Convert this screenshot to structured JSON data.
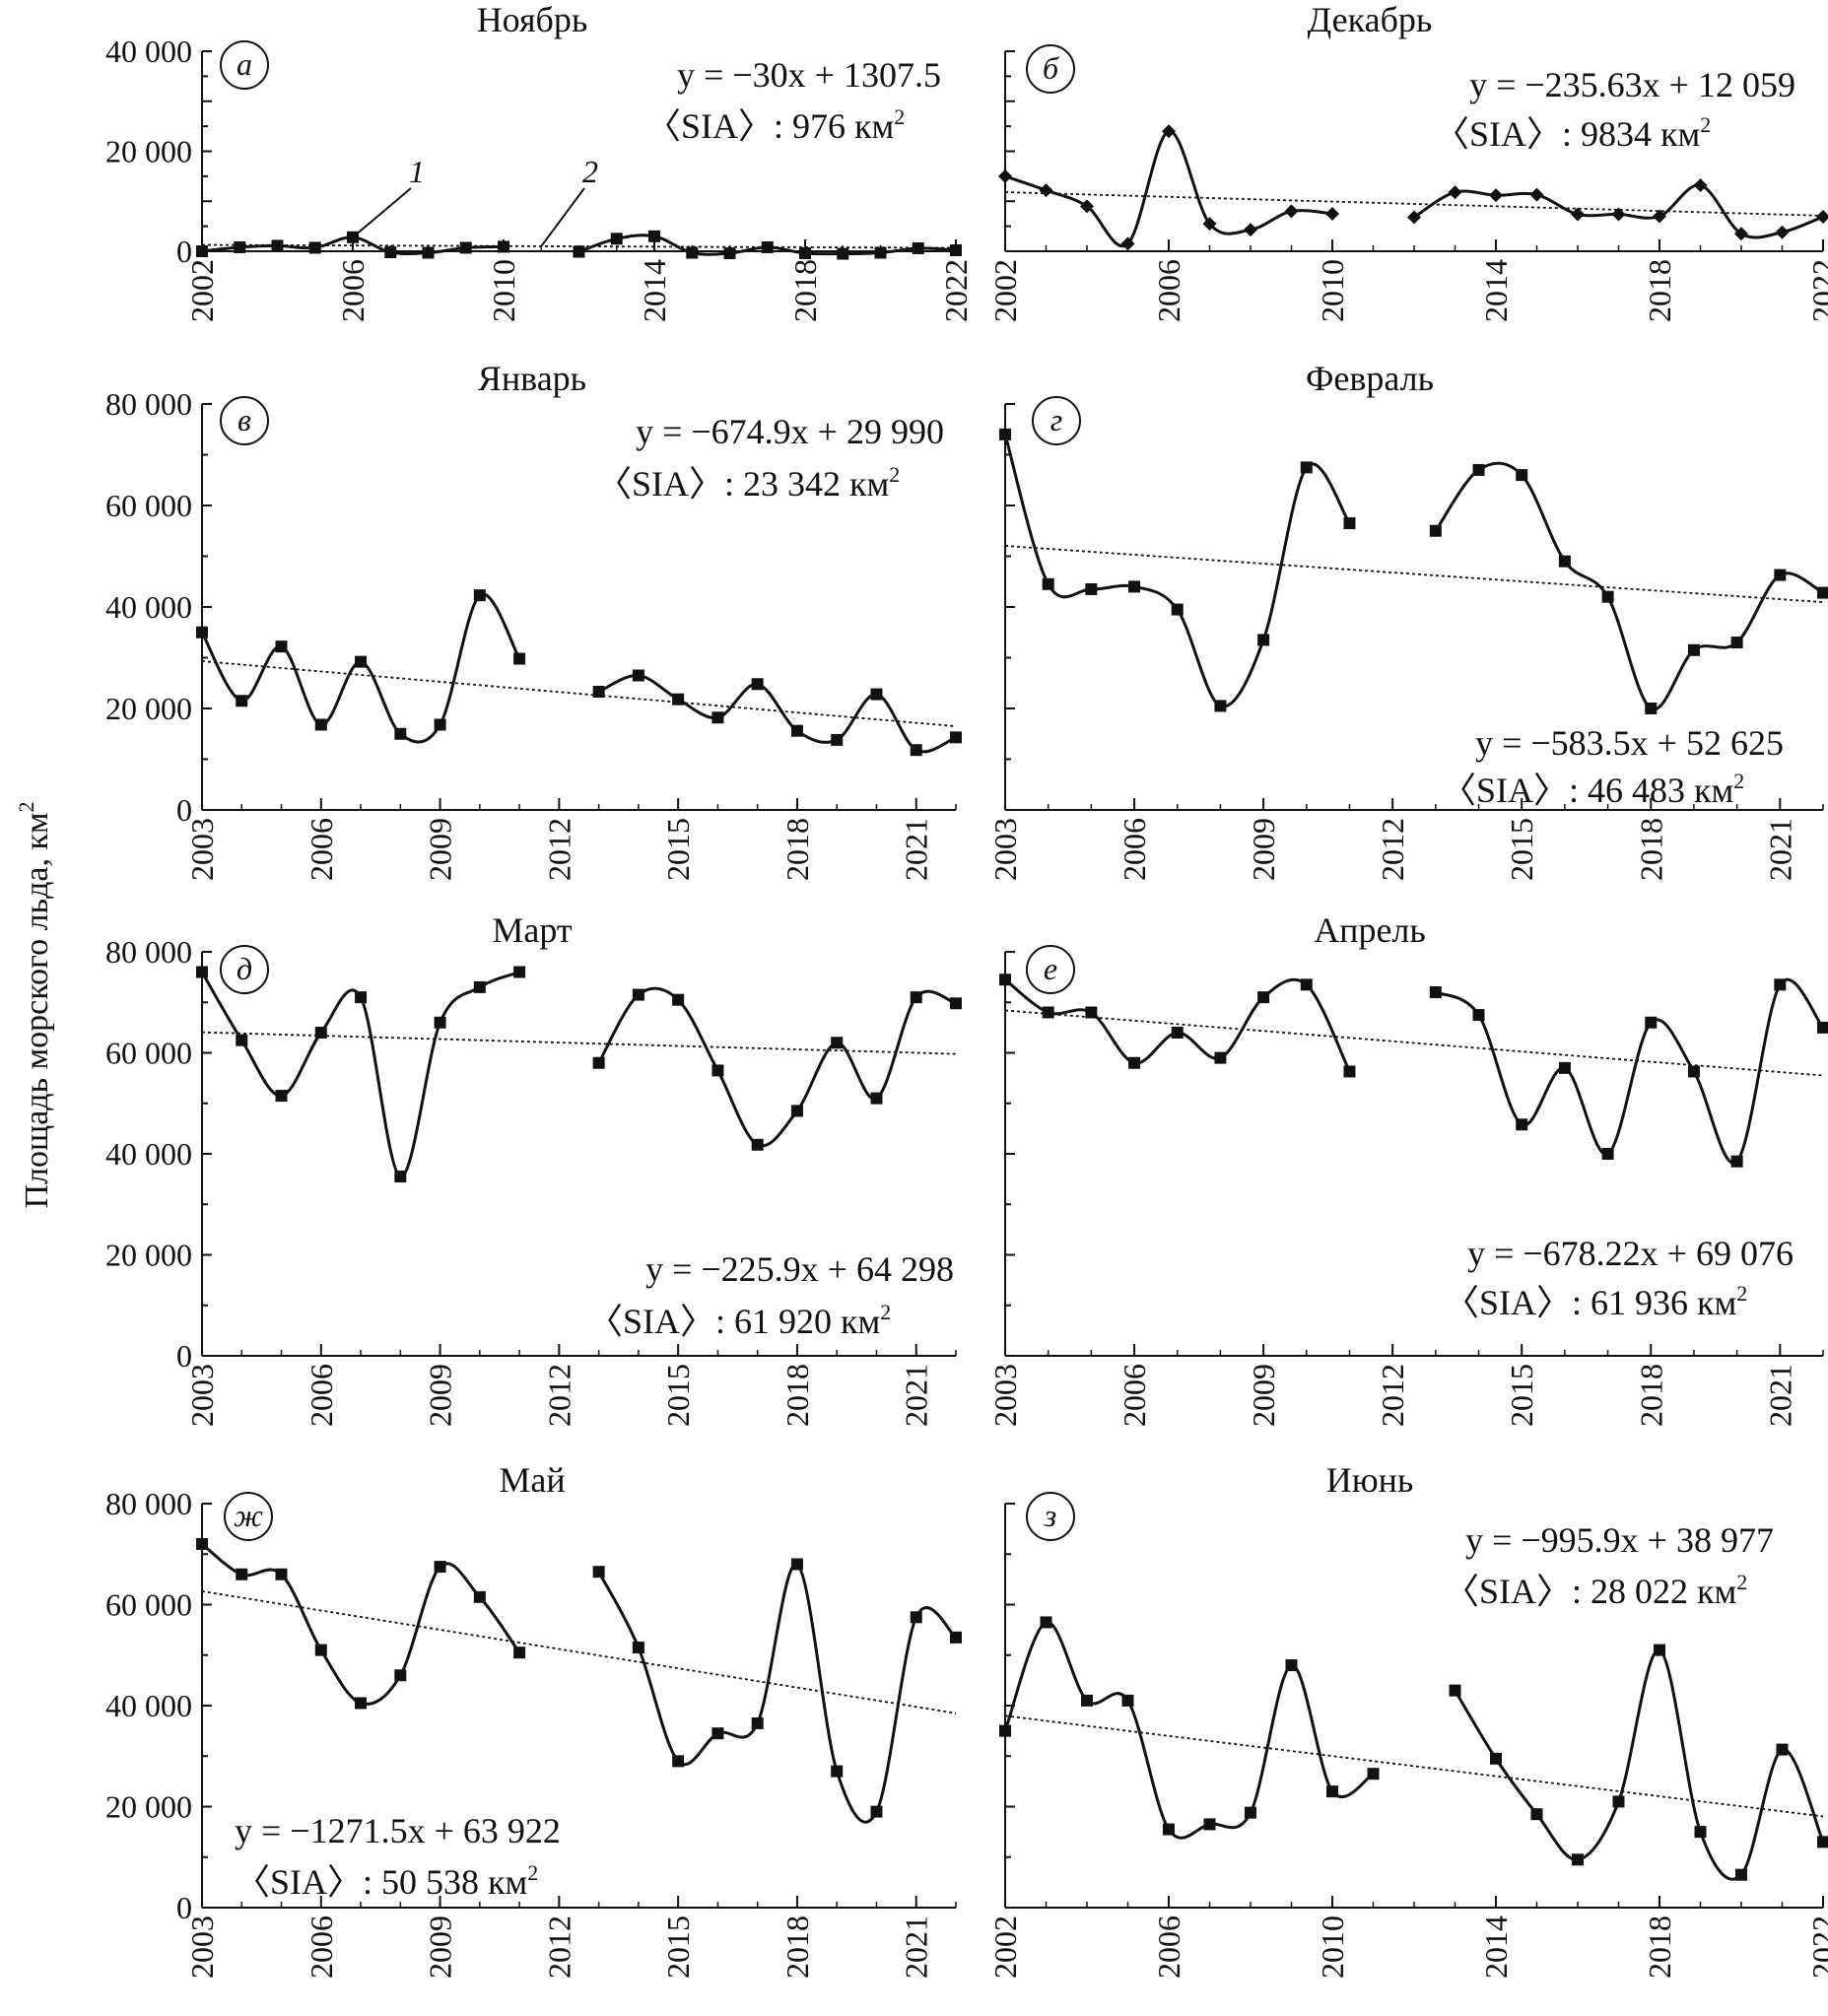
{
  "figure": {
    "ylabel": "Площадь морского льда, км²",
    "ylabel_base": "Площадь морского льда, км",
    "ylabel_sup": "2"
  },
  "chart_data": [
    {
      "type": "line",
      "id": "p1",
      "title": "Ноябрь",
      "label": "а",
      "equation": "y = −30x + 1307.5",
      "mean": "〈SIA〉: 976 км",
      "xticks": [
        "2002",
        "2006",
        "2010",
        "2014",
        "2018",
        "2022"
      ],
      "yticks": [
        "0",
        "20 000",
        "40 000"
      ],
      "xlim": [
        2002,
        2022
      ],
      "ylim": [
        0,
        40000
      ],
      "segments": [
        {
          "x": [
            2002,
            2003,
            2004,
            2005,
            2006,
            2007,
            2008,
            2009,
            2010
          ],
          "y": [
            0,
            800,
            1100,
            700,
            2800,
            -200,
            -300,
            700,
            900
          ]
        },
        {
          "x": [
            2012,
            2013,
            2014,
            2015,
            2016,
            2017,
            2018,
            2019,
            2020,
            2021,
            2022
          ],
          "y": [
            -100,
            2500,
            3000,
            -300,
            -400,
            800,
            -400,
            -500,
            -300,
            600,
            200
          ]
        }
      ],
      "marker": "square",
      "trend": {
        "x": [
          2002,
          2022
        ],
        "y": [
          1277.5,
          677.5
        ]
      },
      "series_labels": [
        {
          "text": "1",
          "target": [
            2006,
            2800
          ],
          "pos": [
            2007.7,
            13000
          ]
        },
        {
          "text": "2",
          "target": [
            2011,
            1000
          ],
          "pos": [
            2012.3,
            13000
          ]
        }
      ]
    },
    {
      "type": "line",
      "id": "p2",
      "title": "Декабрь",
      "label": "б",
      "equation": "y = −235.63x + 12 059",
      "mean": "〈SIA〉: 9834 км",
      "xticks": [
        "2002",
        "2006",
        "2010",
        "2014",
        "2018",
        "2022"
      ],
      "yticks": [],
      "xlim": [
        2002,
        2022
      ],
      "ylim": [
        0,
        40000
      ],
      "segments": [
        {
          "x": [
            2002,
            2003,
            2004,
            2005,
            2006,
            2007,
            2008,
            2009,
            2010
          ],
          "y": [
            15000,
            12200,
            9000,
            1500,
            24000,
            5500,
            4300,
            8000,
            7500
          ]
        },
        {
          "x": [
            2012,
            2013,
            2014,
            2015,
            2016,
            2017,
            2018,
            2019,
            2020,
            2021,
            2022
          ],
          "y": [
            6800,
            11800,
            11200,
            11300,
            7400,
            7400,
            7000,
            13200,
            3500,
            3800,
            6900
          ]
        }
      ],
      "marker": "diamond",
      "trend": {
        "x": [
          2002,
          2022
        ],
        "y": [
          11823,
          7111
        ]
      }
    },
    {
      "type": "line",
      "id": "p3",
      "title": "Январь",
      "label": "в",
      "equation": "y = −674.9x + 29 990",
      "mean": "〈SIA〉: 23 342 км",
      "xticks": [
        "2003",
        "2006",
        "2009",
        "2012",
        "2015",
        "2018",
        "2021"
      ],
      "yticks": [
        "0",
        "20 000",
        "40 000",
        "60 000",
        "80 000"
      ],
      "xlim": [
        2003,
        2022
      ],
      "ylim": [
        0,
        80000
      ],
      "segments": [
        {
          "x": [
            2003,
            2004,
            2005,
            2006,
            2007,
            2008,
            2009,
            2010,
            2011
          ],
          "y": [
            35000,
            21500,
            32200,
            16800,
            29200,
            15000,
            16800,
            42300,
            29800
          ]
        },
        {
          "x": [
            2013,
            2014,
            2015,
            2016,
            2017,
            2018,
            2019,
            2020,
            2021,
            2022
          ],
          "y": [
            23300,
            26500,
            21800,
            18200,
            24800,
            15600,
            13800,
            22800,
            11800,
            14300
          ]
        }
      ],
      "marker": "square",
      "trend": {
        "x": [
          2003,
          2022
        ],
        "y": [
          29315,
          16492
        ]
      }
    },
    {
      "type": "line",
      "id": "p4",
      "title": "Февраль",
      "label": "г",
      "equation": "y = −583.5x + 52 625",
      "mean": "〈SIA〉: 46 483 км",
      "xticks": [
        "2003",
        "2006",
        "2009",
        "2012",
        "2015",
        "2018",
        "2021"
      ],
      "yticks": [],
      "xlim": [
        2003,
        2022
      ],
      "ylim": [
        0,
        80000
      ],
      "segments": [
        {
          "x": [
            2003,
            2004,
            2005,
            2006,
            2007,
            2008,
            2009,
            2010,
            2011
          ],
          "y": [
            74000,
            44500,
            43500,
            44000,
            39500,
            20500,
            33500,
            67500,
            56500
          ]
        },
        {
          "x": [
            2013,
            2014,
            2015,
            2016,
            2017,
            2018,
            2019,
            2020,
            2021,
            2022
          ],
          "y": [
            55000,
            67000,
            66000,
            49000,
            42000,
            20000,
            31500,
            33000,
            46300,
            42800
          ]
        }
      ],
      "marker": "square",
      "trend": {
        "x": [
          2003,
          2022
        ],
        "y": [
          52041,
          40954
        ]
      }
    },
    {
      "type": "line",
      "id": "p5",
      "title": "Март",
      "label": "д",
      "equation": "y = −225.9x + 64 298",
      "mean": "〈SIA〉: 61 920 км",
      "xticks": [
        "2003",
        "2006",
        "2009",
        "2012",
        "2015",
        "2018",
        "2021"
      ],
      "yticks": [
        "0",
        "20 000",
        "40 000",
        "60 000",
        "80 000"
      ],
      "xlim": [
        2003,
        2022
      ],
      "ylim": [
        0,
        80000
      ],
      "segments": [
        {
          "x": [
            2003,
            2004,
            2005,
            2006,
            2007,
            2008,
            2009,
            2010,
            2011
          ],
          "y": [
            76000,
            62500,
            51500,
            64000,
            71000,
            35500,
            66000,
            73000,
            76000
          ]
        },
        {
          "x": [
            2013,
            2014,
            2015,
            2016,
            2017,
            2018,
            2019,
            2020,
            2021,
            2022
          ],
          "y": [
            58000,
            71500,
            70500,
            56500,
            41800,
            48500,
            62000,
            51000,
            71000,
            69800
          ]
        }
      ],
      "marker": "square",
      "trend": {
        "x": [
          2003,
          2022
        ],
        "y": [
          64072,
          59780
        ]
      }
    },
    {
      "type": "line",
      "id": "p6",
      "title": "Апрель",
      "label": "е",
      "equation": "y = −678.22x + 69 076",
      "mean": "〈SIA〉: 61 936 км",
      "xticks": [
        "2003",
        "2006",
        "2009",
        "2012",
        "2015",
        "2018",
        "2021"
      ],
      "yticks": [],
      "xlim": [
        2003,
        2022
      ],
      "ylim": [
        0,
        80000
      ],
      "segments": [
        {
          "x": [
            2003,
            2004,
            2005,
            2006,
            2007,
            2008,
            2009,
            2010,
            2011
          ],
          "y": [
            74500,
            68000,
            68000,
            58000,
            64000,
            59000,
            71000,
            73500,
            56300
          ]
        },
        {
          "x": [
            2013,
            2014,
            2015,
            2016,
            2017,
            2018,
            2019,
            2020,
            2021,
            2022
          ],
          "y": [
            72000,
            67500,
            45800,
            57000,
            40000,
            66000,
            56300,
            38500,
            73500,
            65000
          ]
        }
      ],
      "marker": "square",
      "trend": {
        "x": [
          2003,
          2022
        ],
        "y": [
          68398,
          55511
        ]
      }
    },
    {
      "type": "line",
      "id": "p7",
      "title": "Май",
      "label": "ж",
      "equation": "y = −1271.5x + 63 922",
      "mean": "〈SIA〉: 50 538 км",
      "xticks": [
        "2003",
        "2006",
        "2009",
        "2012",
        "2015",
        "2018",
        "2021"
      ],
      "yticks": [
        "0",
        "20 000",
        "40 000",
        "60 000",
        "80 000"
      ],
      "xlim": [
        2003,
        2022
      ],
      "ylim": [
        0,
        80000
      ],
      "segments": [
        {
          "x": [
            2003,
            2004,
            2005,
            2006,
            2007,
            2008,
            2009,
            2010,
            2011
          ],
          "y": [
            72000,
            66000,
            66000,
            51000,
            40500,
            46000,
            67500,
            61500,
            50500
          ]
        },
        {
          "x": [
            2013,
            2014,
            2015,
            2016,
            2017,
            2018,
            2019,
            2020,
            2021,
            2022
          ],
          "y": [
            66500,
            51500,
            29000,
            34500,
            36500,
            68000,
            27000,
            19000,
            57500,
            53500
          ]
        }
      ],
      "marker": "square",
      "trend": {
        "x": [
          2003,
          2022
        ],
        "y": [
          62651,
          38492
        ]
      }
    },
    {
      "type": "line",
      "id": "p8",
      "title": "Июнь",
      "label": "з",
      "equation": "y = −995.9x + 38 977",
      "mean": "〈SIA〉: 28 022 км",
      "xticks": [
        "2002",
        "2006",
        "2010",
        "2014",
        "2018",
        "2022"
      ],
      "yticks": [],
      "xlim": [
        2002,
        2022
      ],
      "ylim": [
        0,
        80000
      ],
      "segments": [
        {
          "x": [
            2002,
            2003,
            2004,
            2005,
            2006,
            2007,
            2008,
            2009,
            2010,
            2011
          ],
          "y": [
            35000,
            56500,
            41000,
            41000,
            15500,
            16500,
            18800,
            48000,
            23000,
            26500
          ]
        },
        {
          "x": [
            2013,
            2014,
            2015,
            2016,
            2017,
            2018,
            2019,
            2020,
            2021,
            2022
          ],
          "y": [
            43000,
            29500,
            18500,
            9500,
            21000,
            51000,
            15000,
            6500,
            31300,
            13000
          ]
        }
      ],
      "marker": "square",
      "trend": {
        "x": [
          2002,
          2022
        ],
        "y": [
          37981,
          18063
        ]
      }
    }
  ]
}
